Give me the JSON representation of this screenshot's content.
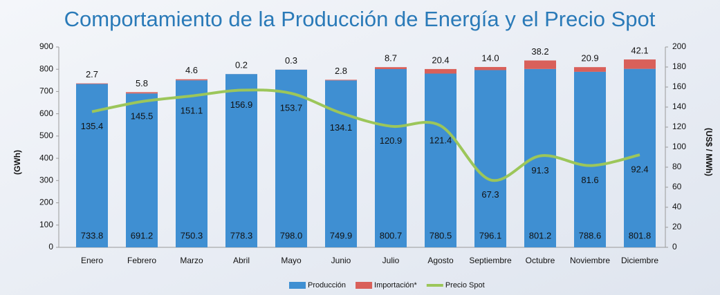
{
  "chart_data": {
    "type": "bar",
    "title": "Comportamiento de la Producción de Energía y el Precio Spot",
    "ylabel": "(GWh)",
    "y2label": "(US$ / MWh)",
    "categories": [
      "Enero",
      "Febrero",
      "Marzo",
      "Abril",
      "Mayo",
      "Junio",
      "Julio",
      "Agosto",
      "Septiembre",
      "Octubre",
      "Noviembre",
      "Diciembre"
    ],
    "stacked": true,
    "series": [
      {
        "name": "Producción",
        "type": "bar",
        "color": "#3f8fd2",
        "values": [
          733.8,
          691.2,
          750.3,
          778.3,
          798.0,
          749.9,
          800.7,
          780.5,
          796.1,
          801.2,
          788.6,
          801.8
        ],
        "value_labels": [
          "733.8",
          "691.2",
          "750.3",
          "778.3",
          "798.0",
          "749.9",
          "800.7",
          "780.5",
          "796.1",
          "801.2",
          "788.6",
          "801.8"
        ]
      },
      {
        "name": "Importación*",
        "type": "bar",
        "color": "#d9605a",
        "values": [
          2.7,
          5.8,
          4.6,
          0.2,
          0.3,
          2.8,
          8.7,
          20.4,
          14.0,
          38.2,
          20.9,
          42.1
        ],
        "value_labels": [
          "2.7",
          "5.8",
          "4.6",
          "0.2",
          "0.3",
          "2.8",
          "8.7",
          "20.4",
          "14.0",
          "38.2",
          "20.9",
          "42.1"
        ]
      },
      {
        "name": "Precio Spot",
        "type": "line",
        "axis": "y2",
        "color": "#9cc65a",
        "values": [
          135.4,
          145.5,
          151.1,
          156.9,
          153.7,
          134.1,
          120.9,
          121.4,
          67.3,
          91.3,
          81.6,
          92.4
        ],
        "value_labels": [
          "135.4",
          "145.5",
          "151.1",
          "156.9",
          "153.7",
          "134.1",
          "120.9",
          "121.4",
          "67.3",
          "91.3",
          "81.6",
          "92.4"
        ]
      }
    ],
    "ylim": [
      0,
      900
    ],
    "yticks": [
      0,
      100,
      200,
      300,
      400,
      500,
      600,
      700,
      800,
      900
    ],
    "y2lim": [
      0,
      200
    ],
    "y2ticks": [
      0,
      20,
      40,
      60,
      80,
      100,
      120,
      140,
      160,
      180,
      200
    ],
    "legend": "bottom"
  }
}
